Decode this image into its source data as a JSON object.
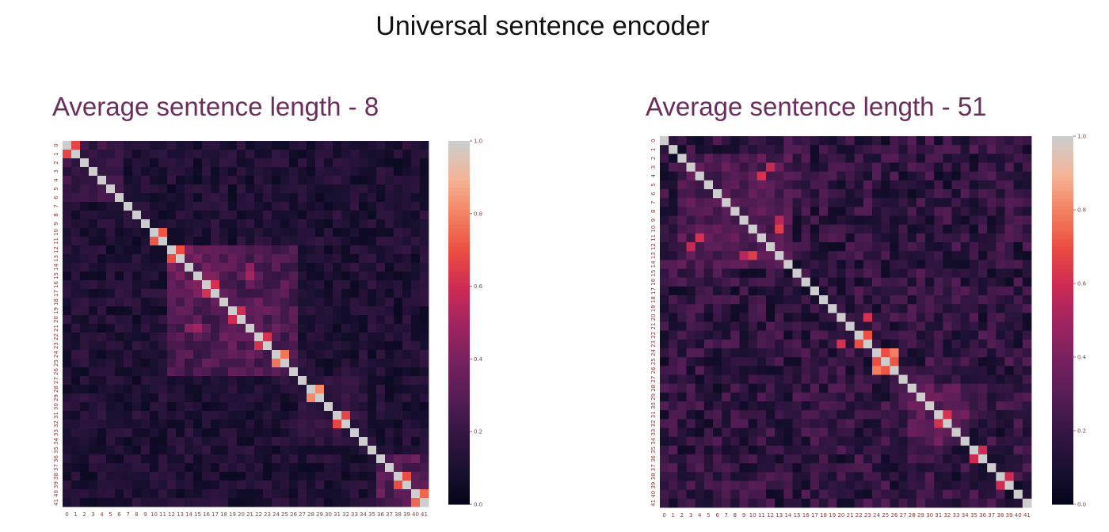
{
  "title": "Universal sentence encoder",
  "colorscale": {
    "name": "rocket",
    "low": "#03051a",
    "high": "#faebdd"
  },
  "chart_data": [
    {
      "type": "heatmap",
      "title": "Average sentence length - 8",
      "n": 42,
      "xlabels": [
        "0",
        "1",
        "2",
        "3",
        "4",
        "5",
        "6",
        "7",
        "8",
        "9",
        "10",
        "11",
        "12",
        "13",
        "14",
        "15",
        "16",
        "17",
        "18",
        "19",
        "20",
        "21",
        "22",
        "23",
        "24",
        "25",
        "26",
        "27",
        "28",
        "29",
        "30",
        "31",
        "32",
        "33",
        "34",
        "35",
        "36",
        "37",
        "38",
        "39",
        "40",
        "41"
      ],
      "ylabels": [
        "0",
        "1",
        "2",
        "3",
        "4",
        "5",
        "6",
        "7",
        "8",
        "9",
        "10",
        "11",
        "12",
        "13",
        "14",
        "15",
        "16",
        "17",
        "18",
        "19",
        "20",
        "21",
        "22",
        "23",
        "24",
        "25",
        "26",
        "27",
        "28",
        "29",
        "30",
        "31",
        "32",
        "33",
        "34",
        "35",
        "36",
        "37",
        "38",
        "39",
        "40",
        "41"
      ],
      "diagonal": 1.0,
      "blocks": [
        {
          "rows": [
            12,
            26
          ],
          "cols": [
            12,
            26
          ],
          "value": 0.27
        },
        {
          "rows": [
            12,
            18
          ],
          "cols": [
            12,
            18
          ],
          "value": 0.33
        },
        {
          "rows": [
            18,
            25
          ],
          "cols": [
            17,
            24
          ],
          "value": 0.3
        },
        {
          "rows": [
            27,
            34
          ],
          "cols": [
            27,
            34
          ],
          "value": 0.18
        },
        {
          "rows": [
            36,
            41
          ],
          "cols": [
            36,
            41
          ],
          "value": 0.3
        },
        {
          "rows": [
            0,
            6
          ],
          "cols": [
            0,
            6
          ],
          "value": 0.2
        }
      ],
      "highlights": [
        {
          "row": 0,
          "col": 1,
          "value": 0.68
        },
        {
          "row": 10,
          "col": 11,
          "value": 0.72
        },
        {
          "row": 12,
          "col": 13,
          "value": 0.7
        },
        {
          "row": 16,
          "col": 17,
          "value": 0.62
        },
        {
          "row": 20,
          "col": 19,
          "value": 0.6
        },
        {
          "row": 22,
          "col": 23,
          "value": 0.62
        },
        {
          "row": 24,
          "col": 25,
          "value": 0.78
        },
        {
          "row": 28,
          "col": 29,
          "value": 0.82
        },
        {
          "row": 31,
          "col": 32,
          "value": 0.68
        },
        {
          "row": 38,
          "col": 39,
          "value": 0.7
        },
        {
          "row": 40,
          "col": 41,
          "value": 0.75
        },
        {
          "row": 21,
          "col": 15,
          "value": 0.5
        },
        {
          "row": 14,
          "col": 21,
          "value": 0.45
        }
      ],
      "base_range": [
        0.04,
        0.2
      ],
      "seed": 7,
      "colorbar": {
        "ticks": [
          "0.0",
          "0.2",
          "0.4",
          "0.6",
          "0.8",
          "1.0"
        ],
        "range": [
          0,
          1
        ]
      }
    },
    {
      "type": "heatmap",
      "title": "Average sentence length - 51",
      "n": 42,
      "xlabels": [
        "0",
        "1",
        "2",
        "3",
        "4",
        "5",
        "6",
        "7",
        "8",
        "9",
        "10",
        "11",
        "12",
        "13",
        "14",
        "15",
        "16",
        "17",
        "18",
        "19",
        "20",
        "21",
        "22",
        "23",
        "24",
        "25",
        "26",
        "27",
        "28",
        "29",
        "30",
        "31",
        "32",
        "33",
        "34",
        "35",
        "36",
        "37",
        "38",
        "39",
        "40",
        "41"
      ],
      "ylabels": [
        "0",
        "1",
        "2",
        "3",
        "4",
        "5",
        "6",
        "7",
        "8",
        "9",
        "10",
        "11",
        "12",
        "13",
        "14",
        "15",
        "16",
        "17",
        "18",
        "19",
        "20",
        "21",
        "22",
        "23",
        "24",
        "25",
        "26",
        "27",
        "28",
        "29",
        "30",
        "31",
        "32",
        "33",
        "34",
        "35",
        "36",
        "37",
        "38",
        "39",
        "40",
        "41"
      ],
      "diagonal": 1.0,
      "blocks": [
        {
          "rows": [
            2,
            14
          ],
          "cols": [
            2,
            14
          ],
          "value": 0.28
        },
        {
          "rows": [
            28,
            34
          ],
          "cols": [
            28,
            34
          ],
          "value": 0.3
        }
      ],
      "highlights": [
        {
          "row": 4,
          "col": 11,
          "value": 0.62
        },
        {
          "row": 10,
          "col": 13,
          "value": 0.65
        },
        {
          "row": 12,
          "col": 3,
          "value": 0.58
        },
        {
          "row": 13,
          "col": 9,
          "value": 0.55
        },
        {
          "row": 22,
          "col": 23,
          "value": 0.7
        },
        {
          "row": 23,
          "col": 20,
          "value": 0.62
        },
        {
          "row": 24,
          "col": 26,
          "value": 0.8
        },
        {
          "row": 25,
          "col": 24,
          "value": 0.7
        },
        {
          "row": 26,
          "col": 25,
          "value": 0.72
        },
        {
          "row": 31,
          "col": 32,
          "value": 0.62
        },
        {
          "row": 35,
          "col": 36,
          "value": 0.6
        },
        {
          "row": 38,
          "col": 39,
          "value": 0.6
        }
      ],
      "base_range": [
        0.05,
        0.3
      ],
      "seed": 13,
      "colorbar": {
        "ticks": [
          "0.0",
          "0.2",
          "0.4",
          "0.6",
          "0.8",
          "1.0"
        ],
        "range": [
          0,
          1
        ]
      }
    }
  ]
}
